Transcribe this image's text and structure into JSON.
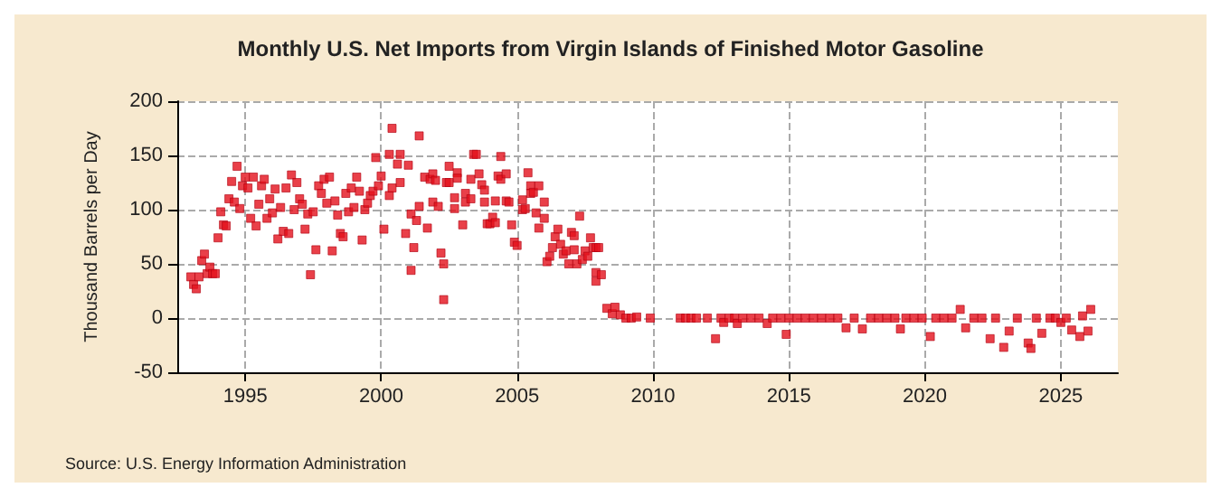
{
  "chart_data": {
    "type": "scatter",
    "title": "Monthly U.S. Net Imports from Virgin Islands of Finished Motor Gasoline",
    "ylabel": "Thousand Barrels per Day",
    "annotations": [
      "Source: U.S. Energy Information Administration"
    ],
    "series": [
      {
        "color": "#e3101b",
        "x": [
          1993.0,
          1993.1,
          1993.2,
          1993.3,
          1993.4,
          1993.5,
          1993.6,
          1993.7,
          1993.8,
          1993.9,
          1994.0,
          1994.1,
          1994.2,
          1994.3,
          1994.4,
          1994.5,
          1994.6,
          1994.7,
          1994.8,
          1994.9,
          1995.0,
          1995.1,
          1995.2,
          1995.3,
          1995.4,
          1995.5,
          1995.6,
          1995.7,
          1995.8,
          1995.9,
          1996.0,
          1996.1,
          1996.2,
          1996.3,
          1996.4,
          1996.5,
          1996.6,
          1996.7,
          1996.8,
          1996.9,
          1997.0,
          1997.1,
          1997.2,
          1997.3,
          1997.4,
          1997.5,
          1997.6,
          1997.7,
          1997.8,
          1997.9,
          1998.0,
          1998.1,
          1998.2,
          1998.3,
          1998.4,
          1998.5,
          1998.6,
          1998.7,
          1998.8,
          1998.9,
          1999.0,
          1999.1,
          1999.2,
          1999.3,
          1999.4,
          1999.5,
          1999.6,
          1999.7,
          1999.8,
          1999.9,
          2000.0,
          2000.1,
          2000.3,
          2000.3,
          2000.4,
          2000.4,
          2000.6,
          2000.7,
          2000.7,
          2000.9,
          2001.0,
          2001.1,
          2001.1,
          2001.2,
          2001.3,
          2001.4,
          2001.4,
          2001.6,
          2001.7,
          2001.8,
          2001.9,
          2001.9,
          2002.0,
          2002.1,
          2002.2,
          2002.3,
          2002.3,
          2002.4,
          2002.5,
          2002.5,
          2002.7,
          2002.7,
          2002.8,
          2002.8,
          2003.0,
          2003.1,
          2003.1,
          2003.3,
          2003.3,
          2003.4,
          2003.5,
          2003.6,
          2003.7,
          2003.8,
          2003.8,
          2003.9,
          2004.0,
          2004.1,
          2004.2,
          2004.2,
          2004.3,
          2004.4,
          2004.4,
          2004.6,
          2004.6,
          2004.7,
          2004.8,
          2004.9,
          2005.0,
          2005.2,
          2005.2,
          2005.3,
          2005.4,
          2005.5,
          2005.5,
          2005.6,
          2005.7,
          2005.8,
          2005.8,
          2006.0,
          2006.0,
          2006.1,
          2006.2,
          2006.3,
          2006.4,
          2006.5,
          2006.6,
          2006.7,
          2006.8,
          2006.9,
          2007.0,
          2007.1,
          2007.1,
          2007.2,
          2007.3,
          2007.4,
          2007.5,
          2007.6,
          2007.7,
          2007.8,
          2007.9,
          2007.9,
          2007.9,
          2008.0,
          2008.1,
          2008.3,
          2008.5,
          2008.6,
          2008.8,
          2009.0,
          2009.2,
          2009.4,
          2009.9,
          2011.0,
          2011.2,
          2011.4,
          2011.6,
          2012.0,
          2012.3,
          2012.5,
          2012.6,
          2012.8,
          2013.0,
          2013.1,
          2013.3,
          2013.6,
          2013.9,
          2014.2,
          2014.4,
          2014.7,
          2014.9,
          2015.0,
          2015.3,
          2015.6,
          2015.9,
          2016.2,
          2016.5,
          2016.8,
          2017.1,
          2017.4,
          2017.7,
          2018.0,
          2018.3,
          2018.6,
          2018.9,
          2019.1,
          2019.3,
          2019.6,
          2019.9,
          2020.2,
          2020.4,
          2020.7,
          2021.0,
          2021.3,
          2021.5,
          2021.8,
          2022.1,
          2022.4,
          2022.6,
          2022.9,
          2023.1,
          2023.4,
          2023.8,
          2023.9,
          2024.1,
          2024.3,
          2024.6,
          2024.8,
          2025.0,
          2025.2,
          2025.4,
          2025.7,
          2025.8,
          2026.0,
          2026.1
        ],
        "values": [
          38,
          31,
          27,
          38,
          53,
          59,
          41,
          47,
          41,
          41,
          74,
          98,
          86,
          85,
          110,
          126,
          107,
          140,
          101,
          122,
          130,
          120,
          92,
          130,
          85,
          105,
          122,
          128,
          92,
          110,
          97,
          119,
          73,
          102,
          80,
          120,
          78,
          132,
          100,
          125,
          110,
          105,
          82,
          96,
          40,
          98,
          63,
          122,
          115,
          128,
          106,
          130,
          62,
          108,
          95,
          78,
          75,
          115,
          98,
          120,
          102,
          130,
          117,
          72,
          100,
          106,
          113,
          117,
          148,
          122,
          131,
          82,
          151,
          113,
          175,
          120,
          142,
          151,
          125,
          78,
          141,
          96,
          44,
          65,
          90,
          168,
          103,
          130,
          83,
          128,
          133,
          107,
          127,
          103,
          60,
          50,
          17,
          125,
          125,
          140,
          111,
          101,
          134,
          129,
          86,
          115,
          107,
          110,
          128,
          151,
          151,
          133,
          123,
          118,
          107,
          87,
          87,
          93,
          88,
          108,
          131,
          128,
          149,
          133,
          108,
          107,
          86,
          70,
          67,
          100,
          109,
          101,
          134,
          122,
          115,
          116,
          97,
          122,
          83,
          92,
          107,
          52,
          57,
          65,
          75,
          82,
          68,
          59,
          62,
          50,
          79,
          76,
          63,
          50,
          94,
          54,
          62,
          57,
          74,
          65,
          65,
          42,
          34,
          65,
          40,
          9,
          4,
          10,
          3,
          0,
          0,
          1,
          0,
          0,
          0,
          0,
          0,
          0,
          -19,
          0,
          -4,
          0,
          0,
          -5,
          0,
          0,
          0,
          -5,
          0,
          0,
          -15,
          0,
          0,
          0,
          0,
          0,
          0,
          0,
          -9,
          0,
          -10,
          0,
          0,
          0,
          0,
          -10,
          0,
          0,
          0,
          -17,
          0,
          0,
          0,
          8,
          -9,
          0,
          0,
          -19,
          0,
          -27,
          -12,
          0,
          -23,
          -28,
          0,
          -14,
          0,
          0,
          -4,
          0,
          -11,
          -17,
          2,
          -12,
          8
        ]
      }
    ],
    "xlim": [
      1992.5,
      2027.1
    ],
    "xticks": [
      1995,
      2000,
      2005,
      2010,
      2015,
      2020,
      2025
    ],
    "ylim": [
      -50,
      200
    ],
    "yticks": [
      -50,
      0,
      50,
      100,
      150,
      200
    ],
    "grid": true,
    "marker": "square"
  }
}
